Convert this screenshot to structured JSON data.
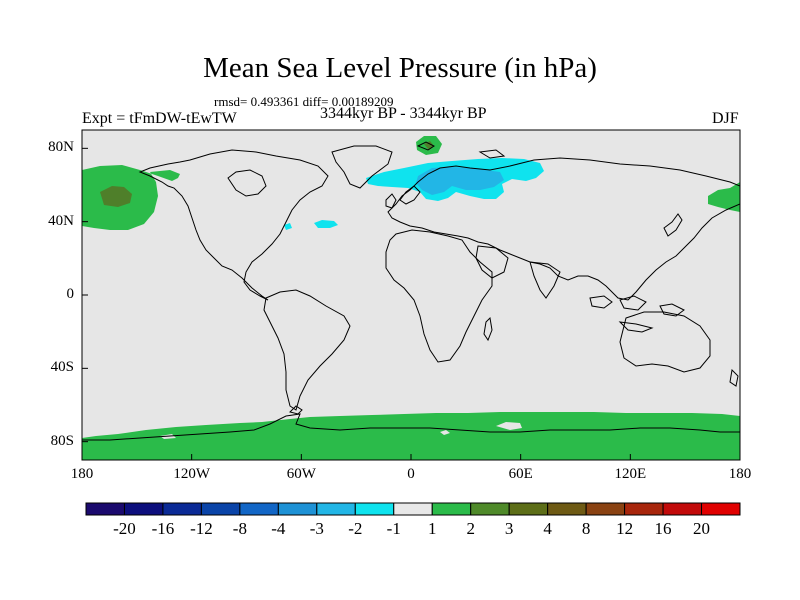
{
  "title": "Mean Sea Level Pressure (in hPa)",
  "stats": "rmsd= 0.493361 diff= 0.00189209",
  "experiment": "Expt = tFmDW-tEwTW",
  "period": "3344kyr BP - 3344kyr BP",
  "season": "DJF",
  "axes": {
    "lat_labels": [
      "80N",
      "40N",
      "0",
      "40S",
      "80S"
    ],
    "lon_labels": [
      "180",
      "120W",
      "60W",
      "0",
      "60E",
      "120E",
      "180"
    ]
  },
  "colorbar": {
    "labels": [
      "-20",
      "-16",
      "-12",
      "-8",
      "-4",
      "-3",
      "-2",
      "-1",
      "1",
      "2",
      "3",
      "4",
      "8",
      "12",
      "16",
      "20"
    ],
    "colors": [
      "#1b0a6e",
      "#0d0f7d",
      "#0b2a96",
      "#0a44a8",
      "#1266c6",
      "#1e92d6",
      "#22b6e6",
      "#0fe3ee",
      "#e8e8e8",
      "#2bbb4a",
      "#4f8a2a",
      "#5d6e18",
      "#6e5a14",
      "#8a4212",
      "#a8260c",
      "#c20a0a",
      "#e00000"
    ]
  },
  "map": {
    "background_color": "#e6e6e6",
    "anomaly_regions": [
      {
        "name": "north-pacific-positive",
        "sign": "positive",
        "level": "2-3"
      },
      {
        "name": "northern-europe-negative",
        "sign": "negative",
        "level": "-1 to -3"
      },
      {
        "name": "svalbard-positive",
        "sign": "positive",
        "level": "2-3"
      },
      {
        "name": "antarctic-positive",
        "sign": "positive",
        "level": "1-2"
      }
    ]
  }
}
